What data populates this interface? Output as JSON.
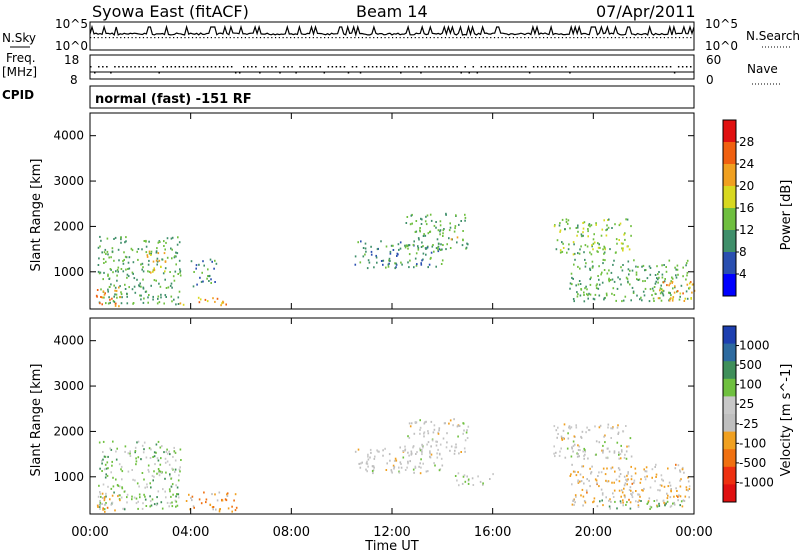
{
  "header": {
    "station": "Syowa East (fitACF)",
    "beam": "Beam 14",
    "date": "07/Apr/2011"
  },
  "top_panels": {
    "nsky_label": "N.Sky",
    "nsky_ticks": [
      "10^5",
      "10^0"
    ],
    "nsearch_label": "N.Search",
    "nsearch_ticks": [
      "10^5",
      "10^0"
    ],
    "freq_label": "Freq.",
    "freq_unit": "[MHz]",
    "freq_ticks": [
      "18",
      "8"
    ],
    "nave_label": "Nave",
    "nave_ticks": [
      "60",
      "0"
    ],
    "cpid_label": "CPID",
    "cpid_text": "normal (fast) -151 RF"
  },
  "colors": {
    "power_scale": [
      "#0000ff",
      "#2a4fb0",
      "#3f8f6a",
      "#6fbf3f",
      "#d8d820",
      "#f0a020",
      "#f06010",
      "#e01010"
    ],
    "velocity_scale": [
      "#1d3fb0",
      "#2d6a9f",
      "#3f8f5a",
      "#6fc03f",
      "#c8c8c8",
      "#bfbfbf",
      "#f0a020",
      "#f07010",
      "#ee3010",
      "#e01010"
    ]
  },
  "chart_data": [
    {
      "type": "heatmap",
      "title": "Power",
      "ylabel": "Slant Range [km]",
      "xlabel": "",
      "x_ticks": [
        "00:00",
        "04:00",
        "08:00",
        "12:00",
        "16:00",
        "20:00",
        "00:00"
      ],
      "y_ticks": [
        "1000",
        "2000",
        "3000",
        "4000"
      ],
      "ylim": [
        180,
        4500
      ],
      "xlim_hours": [
        0,
        24
      ],
      "colorbar_label": "Power [dB]",
      "colorbar_ticks": [
        "4",
        "8",
        "12",
        "16",
        "20",
        "24",
        "28"
      ],
      "colorbar_range": [
        0,
        32
      ],
      "regions": [
        {
          "t": [
            0.3,
            3.6
          ],
          "r": [
            300,
            1800
          ],
          "level": 12
        },
        {
          "t": [
            2.2,
            3.0
          ],
          "r": [
            1000,
            1500
          ],
          "level": 20
        },
        {
          "t": [
            0.2,
            1.2
          ],
          "r": [
            250,
            700
          ],
          "level": 24
        },
        {
          "t": [
            3.5,
            5.5
          ],
          "r": [
            280,
            450
          ],
          "level": 22
        },
        {
          "t": [
            4.0,
            5.0
          ],
          "r": [
            700,
            1300
          ],
          "level": 10
        },
        {
          "t": [
            10.5,
            14.0
          ],
          "r": [
            1100,
            1700
          ],
          "level": 10
        },
        {
          "t": [
            12.5,
            15.0
          ],
          "r": [
            1500,
            2300
          ],
          "level": 12
        },
        {
          "t": [
            14.3,
            14.8
          ],
          "r": [
            1700,
            1800
          ],
          "level": 22
        },
        {
          "t": [
            18.4,
            21.5
          ],
          "r": [
            1400,
            2200
          ],
          "level": 14
        },
        {
          "t": [
            19.0,
            23.8
          ],
          "r": [
            350,
            1300
          ],
          "level": 12
        },
        {
          "t": [
            22.5,
            24.0
          ],
          "r": [
            350,
            800
          ],
          "level": 22
        }
      ]
    },
    {
      "type": "heatmap",
      "title": "Velocity",
      "ylabel": "Slant Range [km]",
      "xlabel": "Time UT",
      "x_ticks": [
        "00:00",
        "04:00",
        "08:00",
        "12:00",
        "16:00",
        "20:00",
        "00:00"
      ],
      "y_ticks": [
        "1000",
        "2000",
        "3000",
        "4000"
      ],
      "ylim": [
        180,
        4500
      ],
      "xlim_hours": [
        0,
        24
      ],
      "colorbar_label": "Velocity [m s^-1]",
      "colorbar_ticks": [
        "1000",
        "500",
        "100",
        "25",
        "-25",
        "-100",
        "-500",
        "-1000"
      ],
      "colorbar_range": [
        -1200,
        1200
      ],
      "regions": [
        {
          "t": [
            0.3,
            3.6
          ],
          "r": [
            300,
            1800
          ],
          "level": 300
        },
        {
          "t": [
            0.2,
            1.2
          ],
          "r": [
            250,
            700
          ],
          "level": -300
        },
        {
          "t": [
            3.8,
            5.8
          ],
          "r": [
            250,
            700
          ],
          "level": -400
        },
        {
          "t": [
            10.5,
            14.0
          ],
          "r": [
            1100,
            1700
          ],
          "level": 0
        },
        {
          "t": [
            12.5,
            15.0
          ],
          "r": [
            1500,
            2300
          ],
          "level": 0
        },
        {
          "t": [
            14.5,
            16.0
          ],
          "r": [
            800,
            1100
          ],
          "level": 80
        },
        {
          "t": [
            18.4,
            21.5
          ],
          "r": [
            1400,
            2200
          ],
          "level": 0
        },
        {
          "t": [
            19.0,
            23.8
          ],
          "r": [
            350,
            1300
          ],
          "level": -200
        },
        {
          "t": [
            20.0,
            23.5
          ],
          "r": [
            300,
            500
          ],
          "level": 400
        }
      ]
    }
  ]
}
